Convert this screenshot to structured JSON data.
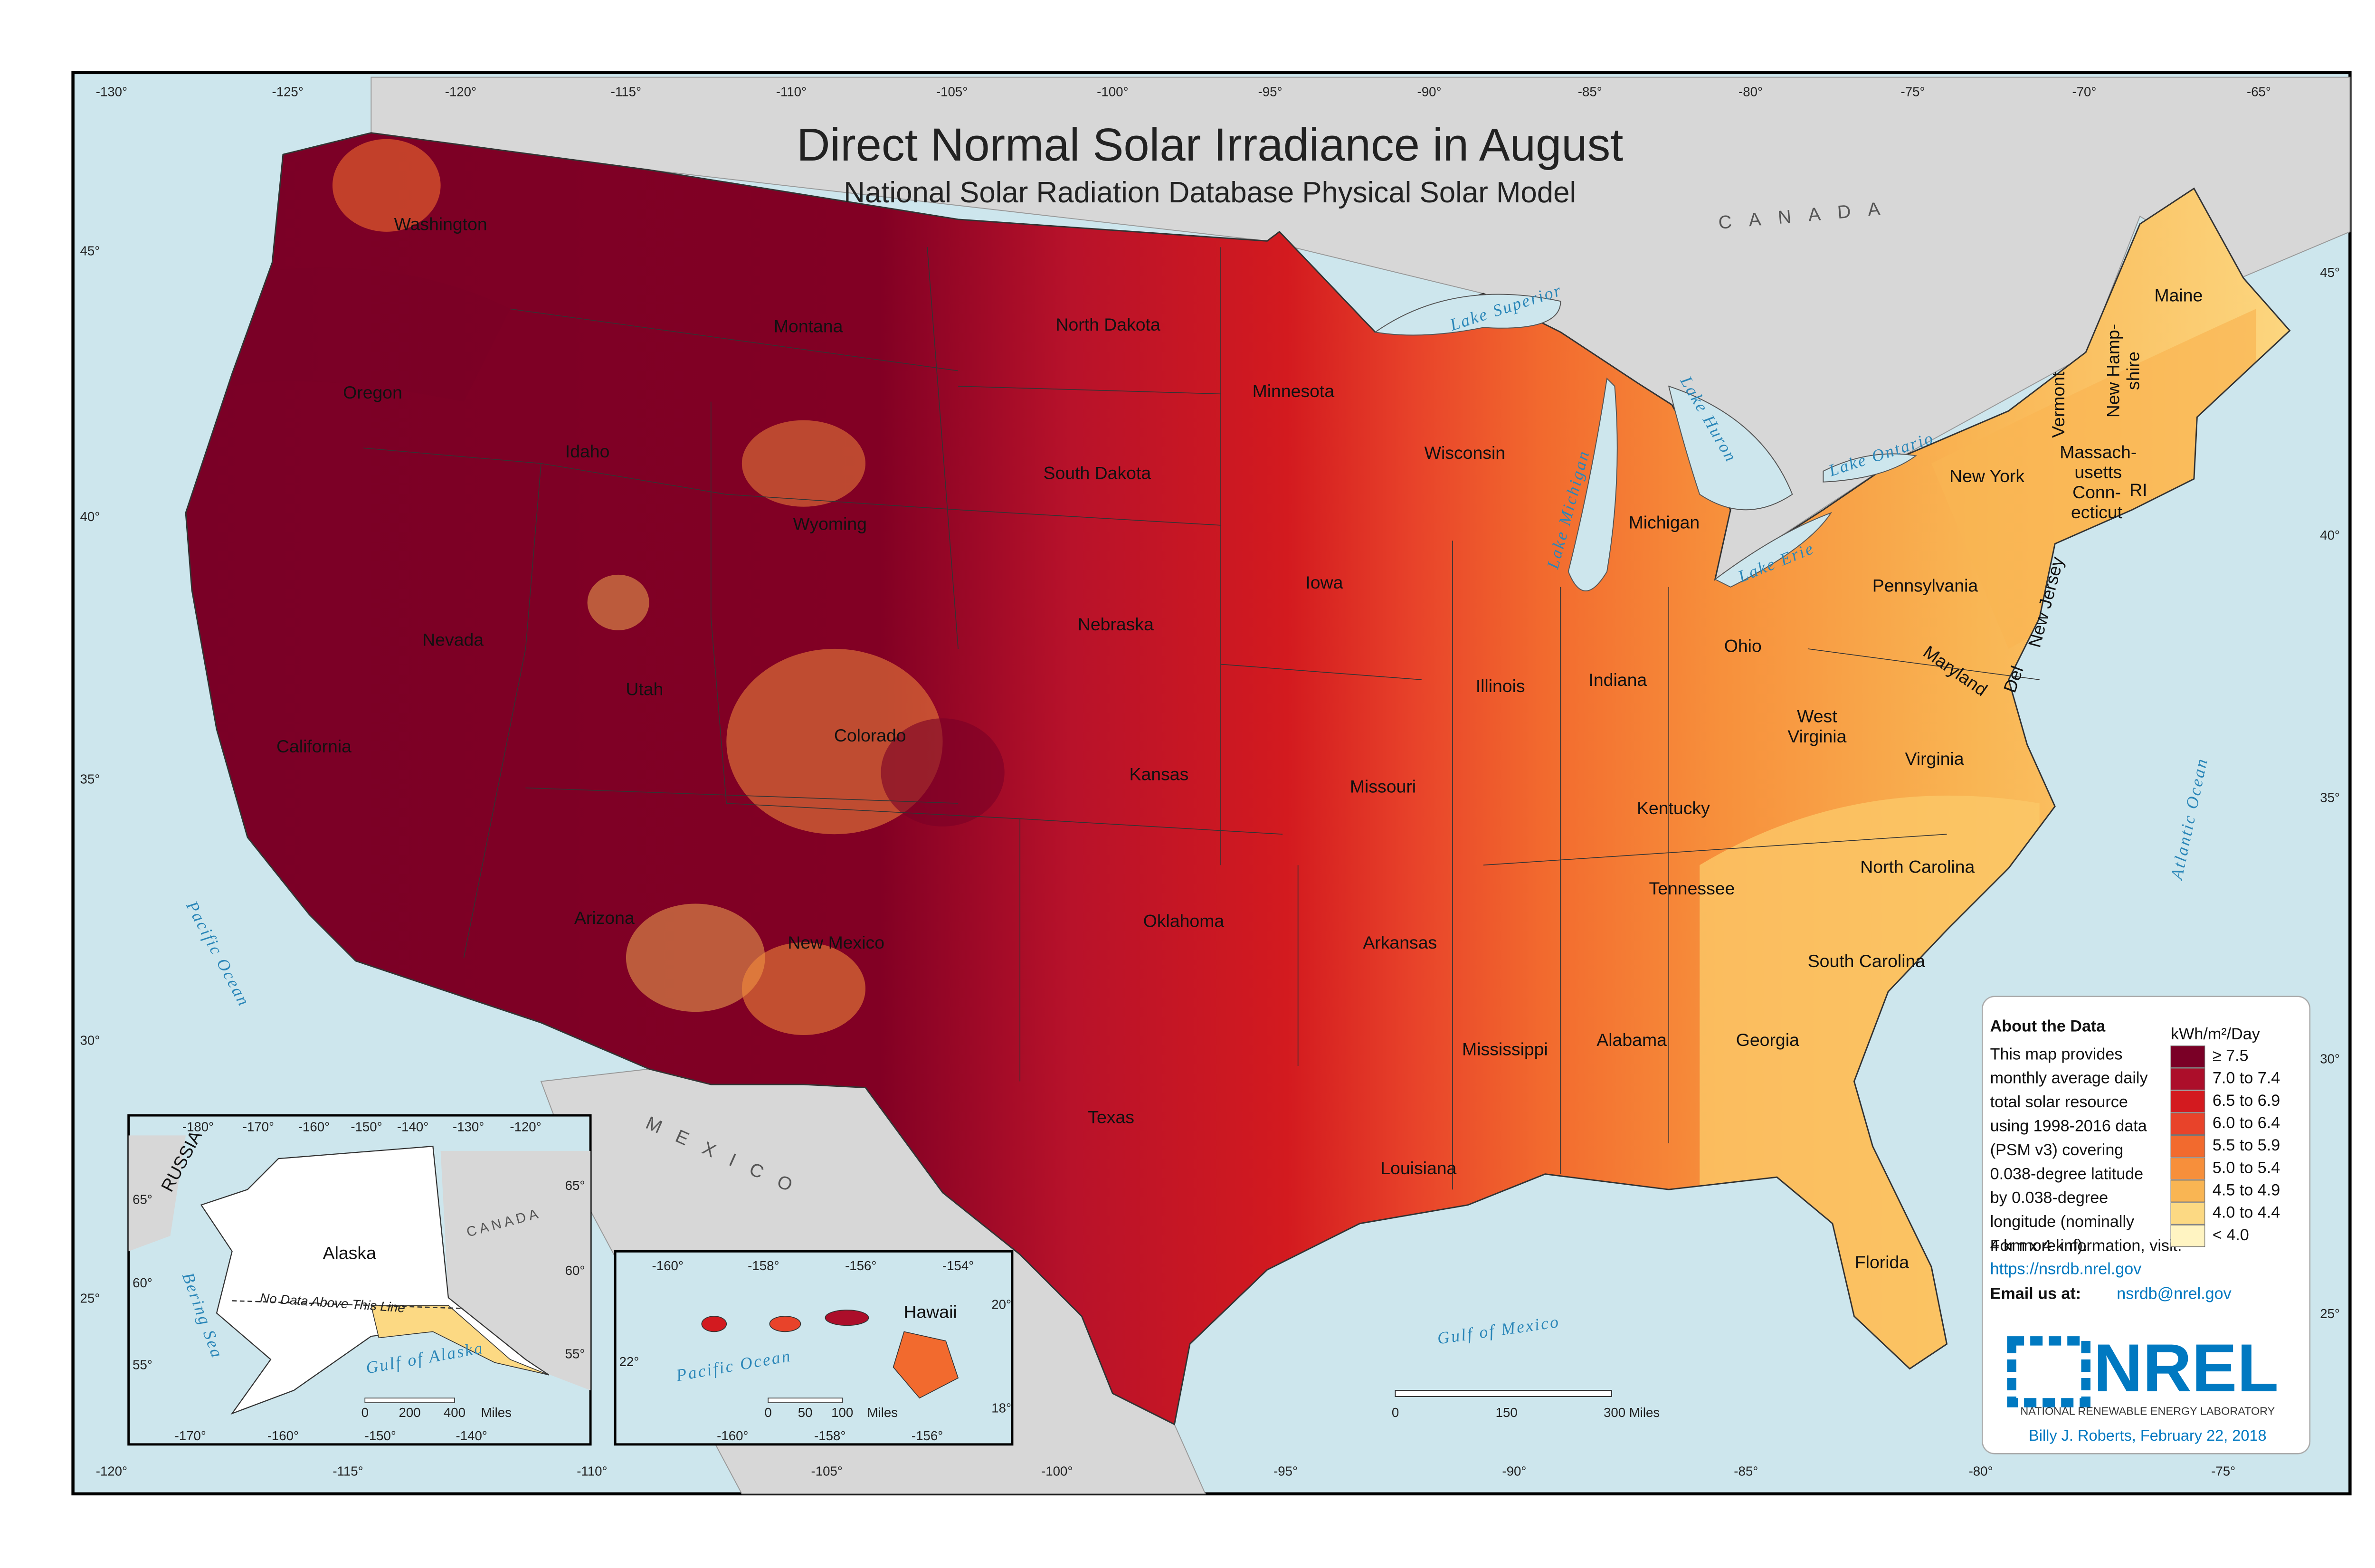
{
  "title": "Direct Normal Solar Irradiance in August",
  "subtitle": "National Solar Radiation Database Physical Solar Model",
  "graticule": {
    "top": [
      "-130°",
      "-125°",
      "-120°",
      "-115°",
      "-110°",
      "-105°",
      "-100°",
      "-95°",
      "-90°",
      "-85°",
      "-80°",
      "-75°",
      "-70°",
      "-65°"
    ],
    "bottom": [
      "-120°",
      "-115°",
      "-110°",
      "-105°",
      "-100°",
      "-95°",
      "-90°",
      "-85°",
      "-80°",
      "-75°"
    ],
    "left": [
      "45°",
      "40°",
      "35°",
      "30°",
      "25°"
    ],
    "right": [
      "45°",
      "40°",
      "35°",
      "30°",
      "25°"
    ]
  },
  "states": [
    [
      "Washington"
    ],
    [
      "Oregon"
    ],
    [
      "Idaho"
    ],
    [
      "Montana"
    ],
    [
      "Wyoming"
    ],
    [
      "Nevada"
    ],
    [
      "Utah"
    ],
    [
      "Colorado"
    ],
    [
      "California"
    ],
    [
      "Arizona"
    ],
    [
      "New Mexico"
    ],
    [
      "North Dakota"
    ],
    [
      "South Dakota"
    ],
    [
      "Nebraska"
    ],
    [
      "Kansas"
    ],
    [
      "Oklahoma"
    ],
    [
      "Texas"
    ],
    [
      "Minnesota"
    ],
    [
      "Iowa"
    ],
    [
      "Missouri"
    ],
    [
      "Arkansas"
    ],
    [
      "Louisiana"
    ],
    [
      "Wisconsin"
    ],
    [
      "Illinois"
    ],
    [
      "Michigan"
    ],
    [
      "Indiana"
    ],
    [
      "Ohio"
    ],
    [
      "Kentucky"
    ],
    [
      "Tennessee"
    ],
    [
      "Mississippi"
    ],
    [
      "Alabama"
    ],
    [
      "Georgia"
    ],
    [
      "Florida"
    ],
    [
      "South Carolina"
    ],
    [
      "North Carolina"
    ],
    [
      "Virginia"
    ],
    [
      "West",
      "Virginia"
    ],
    [
      "Pennsylvania"
    ],
    [
      "New York"
    ],
    [
      "Maine"
    ],
    [
      "Vermont"
    ],
    [
      "New Hamp-",
      "shire"
    ],
    [
      "Massach-",
      "usetts"
    ],
    [
      "Conn-",
      "ecticut"
    ],
    [
      "RI"
    ],
    [
      "New Jersey"
    ],
    [
      "Del"
    ],
    [
      "Maryland"
    ]
  ],
  "water": [
    "Lake Superior",
    "Lake Michigan",
    "Lake Huron",
    "Lake Ontario",
    "Lake Erie",
    "Pacific Ocean",
    "Atlantic Ocean",
    "Gulf of Mexico"
  ],
  "countries": [
    "CANADA",
    "MEXICO"
  ],
  "scale_bar": [
    "0",
    "150",
    "300  Miles"
  ],
  "legend": {
    "about_title": "About the Data",
    "about_lines": [
      "This map provides",
      "monthly average daily",
      "total solar resource",
      "using 1998-2016 data",
      "(PSM v3) covering",
      "0.038-degree latitude",
      "by 0.038-degree",
      "longitude (nominally",
      "4 km x 4 km)."
    ],
    "more_info": "For more information, visit:",
    "url": "https://nsrdb.nrel.gov",
    "email_label": "Email us at:",
    "email": "nsrdb@nrel.gov",
    "unit": "kWh/m²/Day",
    "classes": [
      {
        "label": "≥ 7.5",
        "color": "#7a0026"
      },
      {
        "label": "7.0 to 7.4",
        "color": "#ac0e2a"
      },
      {
        "label": "6.5 to 6.9",
        "color": "#d31a1f"
      },
      {
        "label": "6.0 to 6.4",
        "color": "#e8432a"
      },
      {
        "label": "5.5 to 5.9",
        "color": "#f26a2e"
      },
      {
        "label": "5.0 to 5.4",
        "color": "#f78f3b"
      },
      {
        "label": "4.5 to 4.9",
        "color": "#f9b553"
      },
      {
        "label": "4.0 to 4.4",
        "color": "#fcd983"
      },
      {
        "label": "< 4.0",
        "color": "#fff4c2"
      }
    ]
  },
  "logo": {
    "name": "NREL",
    "subtitle": "NATIONAL RENEWABLE ENERGY LABORATORY"
  },
  "credit": "Billy J. Roberts,  February 22, 2018",
  "alaska_inset": {
    "labels": [
      "Alaska",
      "RUSSIA",
      "CANADA",
      "Bering Sea",
      "Gulf of Alaska",
      "No Data Above This Line"
    ],
    "top": [
      "-180°",
      "-170°",
      "-160°",
      "-150°",
      "-140°",
      "-130°",
      "-120°"
    ],
    "bottom": [
      "-170°",
      "-160°",
      "-150°",
      "-140°"
    ],
    "left": [
      "65°",
      "60°",
      "55°"
    ],
    "right": [
      "65°",
      "60°",
      "55°"
    ],
    "scale_bar": [
      "0",
      "200",
      "400",
      "Miles"
    ]
  },
  "hawaii_inset": {
    "labels": [
      "Hawaii",
      "Pacific Ocean"
    ],
    "top": [
      "-160°",
      "-158°",
      "-156°",
      "-154°"
    ],
    "bottom": [
      "-160°",
      "-158°",
      "-156°"
    ],
    "left": [
      "22°"
    ],
    "right": [
      "20°",
      "18°"
    ],
    "scale_bar": [
      "0",
      "50",
      "100",
      "Miles"
    ]
  }
}
